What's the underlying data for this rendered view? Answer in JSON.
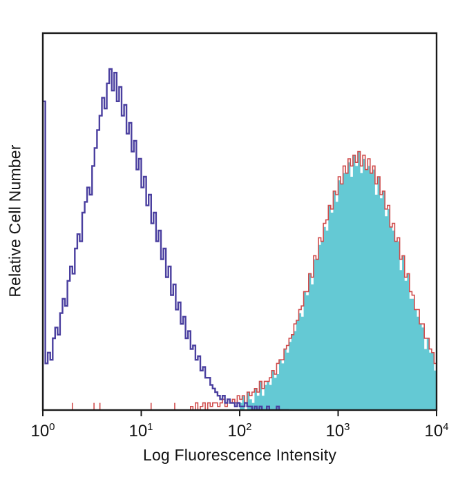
{
  "chart_data": {
    "type": "area",
    "subtype": "flow-cytometry-overlay-histogram",
    "x_scale": "log10",
    "x_range_log": [
      0,
      4
    ],
    "y_max": 105,
    "grid": false,
    "legend": "none",
    "xlabel": "Log Fluorescence Intensity",
    "ylabel": "Relative Cell Number",
    "x_ticks": [
      {
        "base": "10",
        "exp": "0"
      },
      {
        "base": "10",
        "exp": "1"
      },
      {
        "base": "10",
        "exp": "2"
      },
      {
        "base": "10",
        "exp": "3"
      },
      {
        "base": "10",
        "exp": "4"
      }
    ],
    "colors": {
      "purple": "#4a3f9f",
      "red": "#cf4b4b",
      "teal_fill": "#64c9d4",
      "axis": "#1a1a1a"
    },
    "series": [
      {
        "name": "stained-filled-teal",
        "style": "filled",
        "color_key": "teal_fill",
        "t_start": 1.5,
        "t_step": 0.025,
        "values": [
          0,
          0,
          0,
          0,
          0,
          0,
          0,
          0,
          0,
          0,
          0,
          0,
          0,
          0,
          0,
          0,
          0,
          0,
          0,
          0,
          2,
          4,
          0,
          5,
          3,
          2,
          6,
          4,
          8,
          4,
          7,
          8,
          7,
          11,
          9,
          10,
          14,
          13,
          17,
          16,
          19,
          21,
          22,
          25,
          27,
          26,
          33,
          32,
          38,
          35,
          42,
          42,
          46,
          47,
          51,
          50,
          57,
          55,
          61,
          58,
          64,
          63,
          66,
          66,
          69,
          65,
          71,
          68,
          72,
          66,
          70,
          67,
          68,
          66,
          67,
          60,
          65,
          59,
          61,
          54,
          56,
          51,
          50,
          47,
          47,
          39,
          43,
          36,
          38,
          31,
          31,
          28,
          26,
          24,
          23,
          17,
          20,
          16,
          16,
          11,
          12
        ]
      },
      {
        "name": "stained-outline-red",
        "style": "open",
        "color_key": "red",
        "stroke_width": 1.6,
        "t_start": 1.5,
        "t_step": 0.025,
        "baseline_ticks": [
          0.3,
          0.52,
          0.58,
          1.1,
          1.34
        ],
        "baseline_tick_height": 2,
        "values": [
          1,
          0,
          2,
          0,
          1,
          2,
          0,
          2,
          1,
          2,
          2,
          1,
          2,
          3,
          1,
          3,
          2,
          3,
          2,
          4,
          3,
          4,
          2,
          5,
          4,
          5,
          6,
          5,
          8,
          6,
          8,
          8,
          9,
          11,
          10,
          13,
          14,
          14,
          17,
          18,
          20,
          21,
          24,
          25,
          28,
          29,
          33,
          33,
          38,
          37,
          43,
          42,
          48,
          47,
          52,
          53,
          57,
          56,
          61,
          60,
          65,
          63,
          68,
          66,
          70,
          68,
          71,
          69,
          72,
          68,
          71,
          67,
          70,
          66,
          68,
          63,
          65,
          60,
          61,
          56,
          57,
          51,
          52,
          47,
          48,
          42,
          43,
          37,
          38,
          33,
          32,
          28,
          28,
          24,
          24,
          20,
          20,
          17,
          16,
          13,
          13
        ]
      },
      {
        "name": "negative-control-purple",
        "style": "open",
        "color_key": "purple",
        "stroke_width": 2.4,
        "t_start": 0.0,
        "t_step": 0.025,
        "values": [
          86,
          13,
          16,
          14,
          20,
          23,
          21,
          27,
          31,
          29,
          36,
          40,
          38,
          45,
          49,
          47,
          55,
          58,
          62,
          60,
          68,
          73,
          78,
          82,
          87,
          84,
          91,
          95,
          89,
          94,
          86,
          90,
          82,
          85,
          77,
          80,
          72,
          75,
          67,
          70,
          62,
          65,
          57,
          60,
          52,
          55,
          47,
          50,
          42,
          45,
          37,
          40,
          32,
          35,
          28,
          30,
          24,
          26,
          20,
          22,
          17,
          18,
          14,
          15,
          11,
          12,
          9,
          9,
          7,
          6,
          5,
          4,
          3,
          4,
          2,
          3,
          2,
          2,
          1,
          2,
          1,
          1,
          2,
          1,
          1,
          0,
          1,
          0,
          1,
          0,
          0,
          1,
          0,
          0,
          0,
          1,
          0,
          0,
          0,
          0
        ]
      }
    ]
  }
}
